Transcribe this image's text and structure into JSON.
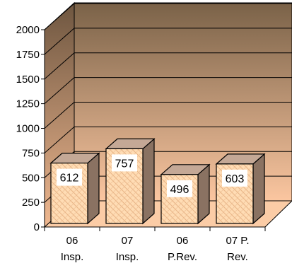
{
  "chart_data": {
    "type": "bar",
    "categories": [
      "06 Insp.",
      "07 Insp.",
      "06 P.Rev.",
      "07 P. Rev."
    ],
    "category_lines": [
      [
        "06",
        "Insp."
      ],
      [
        "07",
        "Insp."
      ],
      [
        "06",
        "P.Rev."
      ],
      [
        "07 P.",
        "Rev."
      ]
    ],
    "values": [
      612,
      757,
      496,
      603
    ],
    "data_labels": [
      "612",
      "757",
      "496",
      "603"
    ],
    "yticks": [
      "0",
      "250",
      "500",
      "750",
      "1000",
      "1250",
      "1500",
      "1750",
      "2000"
    ],
    "ylim": [
      0,
      2000
    ],
    "grid": true,
    "three_d": true,
    "colors": {
      "bar_front": "#ffdcb4",
      "bar_pattern": "#e8b486",
      "bar_side": "#8a7262",
      "bar_top": "#c4a896",
      "wall_top": "#7a6248",
      "wall_bottom": "#fbc6a0",
      "floor": "#fbcca6"
    }
  }
}
